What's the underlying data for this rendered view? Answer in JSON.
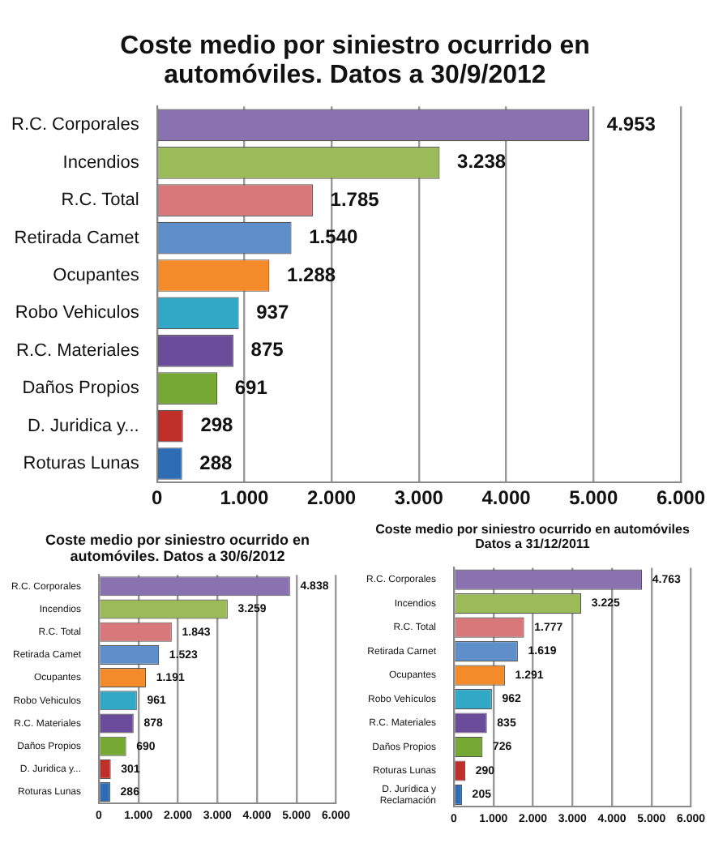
{
  "chart_data": [
    {
      "type": "bar",
      "orientation": "horizontal",
      "title": "Coste medio por siniestro ocurrido en automóviles. Datos a 30/9/2012",
      "categories": [
        "R.C. Corporales",
        "Incendios",
        "R.C. Total",
        "Retirada Camet",
        "Ocupantes",
        "Robo Vehiculos",
        "R.C. Materiales",
        "Daños Propios",
        "D. Juridica y...",
        "Roturas Lunas"
      ],
      "values": [
        4953,
        3238,
        1785,
        1540,
        1288,
        937,
        875,
        691,
        298,
        288
      ],
      "value_labels": [
        "4.953",
        "3.238",
        "1.785",
        "1.540",
        "1.288",
        "937",
        "875",
        "691",
        "298",
        "288"
      ],
      "colors": [
        "#8a72b0",
        "#9bbb59",
        "#d9787a",
        "#5f8fcb",
        "#f38b2a",
        "#31a8c6",
        "#6b4c9a",
        "#76a934",
        "#c0302b",
        "#2e6db4"
      ],
      "xlim": [
        0,
        6000
      ],
      "xticks": [
        {
          "value": 0,
          "label": "0"
        },
        {
          "value": 1000,
          "label": "1.000"
        },
        {
          "value": 2000,
          "label": "2.000"
        },
        {
          "value": 3000,
          "label": "3.000"
        },
        {
          "value": 4000,
          "label": "4.000"
        },
        {
          "value": 5000,
          "label": "5.000"
        },
        {
          "value": 6000,
          "label": "6.000"
        }
      ],
      "grid": "x",
      "legend": false
    },
    {
      "type": "bar",
      "orientation": "horizontal",
      "title": "Coste medio por siniestro ocurrido en automóviles. Datos a 30/6/2012",
      "categories": [
        "R.C. Corporales",
        "Incendios",
        "R.C. Total",
        "Retirada Camet",
        "Ocupantes",
        "Robo Vehiculos",
        "R.C. Materiales",
        "Daños Propios",
        "D. Juridica y...",
        "Roturas Lunas"
      ],
      "values": [
        4838,
        3259,
        1843,
        1523,
        1191,
        961,
        878,
        690,
        301,
        286
      ],
      "value_labels": [
        "4.838",
        "3.259",
        "1.843",
        "1.523",
        "1.191",
        "961",
        "878",
        "690",
        "301",
        "286"
      ],
      "colors": [
        "#8a72b0",
        "#9bbb59",
        "#d9787a",
        "#5f8fcb",
        "#f38b2a",
        "#31a8c6",
        "#6b4c9a",
        "#76a934",
        "#c0302b",
        "#2e6db4"
      ],
      "xlim": [
        0,
        6000
      ],
      "xticks": [
        {
          "value": 0,
          "label": "0"
        },
        {
          "value": 1000,
          "label": "1.000"
        },
        {
          "value": 2000,
          "label": "2.000"
        },
        {
          "value": 3000,
          "label": "3.000"
        },
        {
          "value": 4000,
          "label": "4.000"
        },
        {
          "value": 5000,
          "label": "5.000"
        },
        {
          "value": 6000,
          "label": "6.000"
        }
      ],
      "grid": "x",
      "legend": false
    },
    {
      "type": "bar",
      "orientation": "horizontal",
      "title": "Coste medio por siniestro ocurrido en automóviles Datos a 31/12/2011",
      "categories": [
        "R.C. Corporales",
        "Incendios",
        "R.C. Total",
        "Retirada Carnet",
        "Ocupantes",
        "Robo Vehículos",
        "R.C. Materiales",
        "Daños Propios",
        "Roturas Lunas",
        "D. Jurídica y Reclamación"
      ],
      "values": [
        4763,
        3225,
        1777,
        1619,
        1291,
        962,
        835,
        726,
        290,
        205
      ],
      "value_labels": [
        "4.763",
        "3.225",
        "1.777",
        "1.619",
        "1.291",
        "962",
        "835",
        "726",
        "290",
        "205"
      ],
      "colors": [
        "#8a72b0",
        "#9bbb59",
        "#d9787a",
        "#5f8fcb",
        "#f38b2a",
        "#31a8c6",
        "#6b4c9a",
        "#76a934",
        "#c0302b",
        "#2e6db4"
      ],
      "xlim": [
        0,
        6000
      ],
      "xticks": [
        {
          "value": 0,
          "label": "0"
        },
        {
          "value": 1000,
          "label": "1.000"
        },
        {
          "value": 2000,
          "label": "2.000"
        },
        {
          "value": 3000,
          "label": "3.000"
        },
        {
          "value": 4000,
          "label": "4.000"
        },
        {
          "value": 5000,
          "label": "5.000"
        },
        {
          "value": 6000,
          "label": "6.000"
        }
      ],
      "grid": "x",
      "legend": false
    }
  ]
}
